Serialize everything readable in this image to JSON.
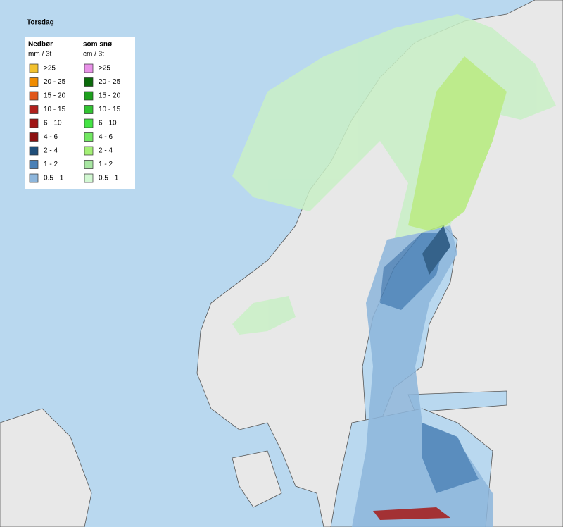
{
  "header": {
    "title": "Torsdag"
  },
  "legend": {
    "columns": [
      {
        "title": "Nedbør",
        "unit": "mm / 3t",
        "items": [
          {
            "label": ">25",
            "color": "#f2c12e"
          },
          {
            "label": "20 - 25",
            "color": "#f08c00"
          },
          {
            "label": "15 - 20",
            "color": "#e0561a"
          },
          {
            "label": "10 - 15",
            "color": "#b0201c"
          },
          {
            "label": "6 - 10",
            "color": "#a01414"
          },
          {
            "label": "4 - 6",
            "color": "#8c1010"
          },
          {
            "label": "2 - 4",
            "color": "#1f4e79"
          },
          {
            "label": "1 - 2",
            "color": "#4a80b6"
          },
          {
            "label": "0.5 - 1",
            "color": "#8db6dc"
          }
        ]
      },
      {
        "title": "som snø",
        "unit": "cm / 3t",
        "items": [
          {
            "label": ">25",
            "color": "#e892e8"
          },
          {
            "label": "20 - 25",
            "color": "#0b6b0b"
          },
          {
            "label": "15 - 20",
            "color": "#1ea01e"
          },
          {
            "label": "10 - 15",
            "color": "#32c432"
          },
          {
            "label": "6 - 10",
            "color": "#44e444"
          },
          {
            "label": "4 - 6",
            "color": "#72e862"
          },
          {
            "label": "2 - 4",
            "color": "#a4f076"
          },
          {
            "label": "1 - 2",
            "color": "#a8e6a2"
          },
          {
            "label": "0.5 - 1",
            "color": "#d2f8d2"
          }
        ]
      }
    ]
  }
}
